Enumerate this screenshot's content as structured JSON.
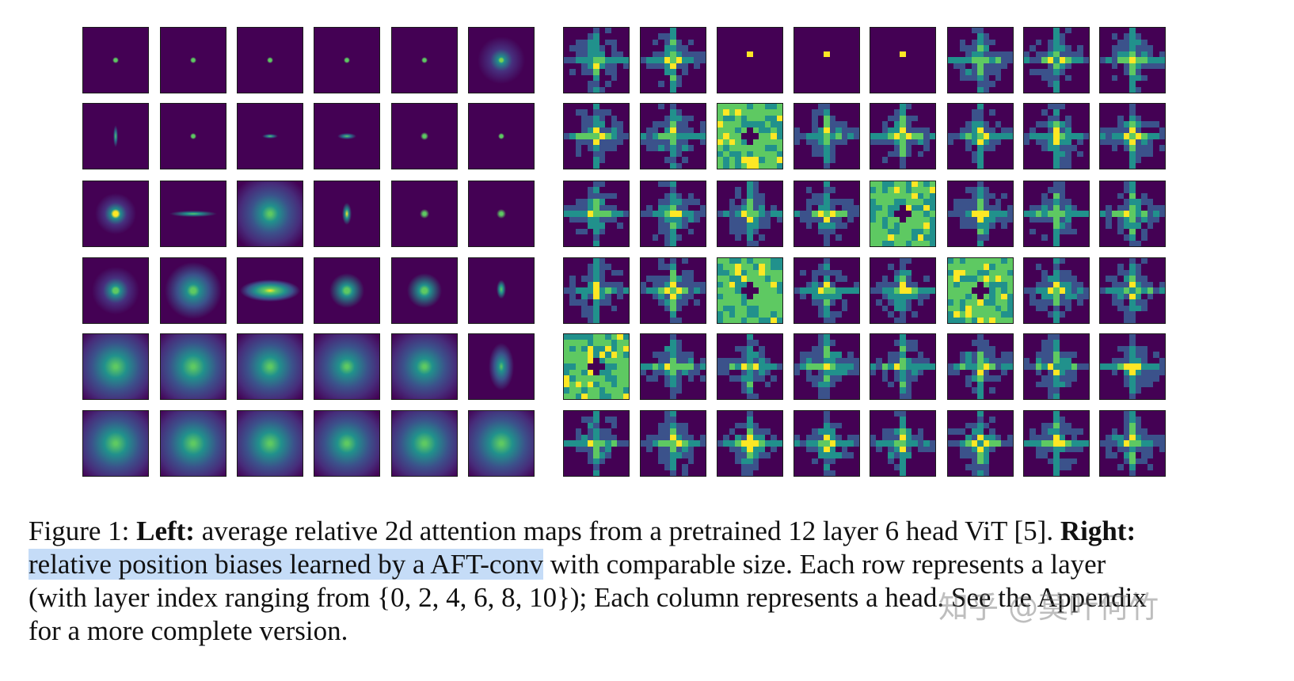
{
  "figure": {
    "left_panel": {
      "label": "Left",
      "description": "average relative 2d attention maps from a pretrained 12 layer 6 head ViT",
      "rows": 6,
      "cols": 6
    },
    "right_panel": {
      "label": "Right",
      "description": "relative position biases learned by a AFT-conv with comparable size",
      "rows": 6,
      "cols": 8
    },
    "row_layer_indices": [
      0,
      2,
      4,
      6,
      8,
      10
    ],
    "colormap": [
      "#440154",
      "#3b528b",
      "#21918c",
      "#5ec962",
      "#fde725"
    ]
  },
  "caption": {
    "line1_a": "Figure 1: ",
    "line1_b": "Left:",
    "line1_c": " average relative 2d attention maps from a pretrained 12 layer 6 head ViT [5]. ",
    "line1_d": "Right:",
    "line2_highlight": "relative position biases learned by a AFT-conv",
    "line2_rest": " with comparable size. Each row represents a layer",
    "line3": "(with layer index ranging from {0, 2, 4, 6, 8, 10}); Each column represents a head. See the Appendix",
    "line4": "for a more complete version."
  },
  "watermark": "知乎 @莫叶何竹"
}
